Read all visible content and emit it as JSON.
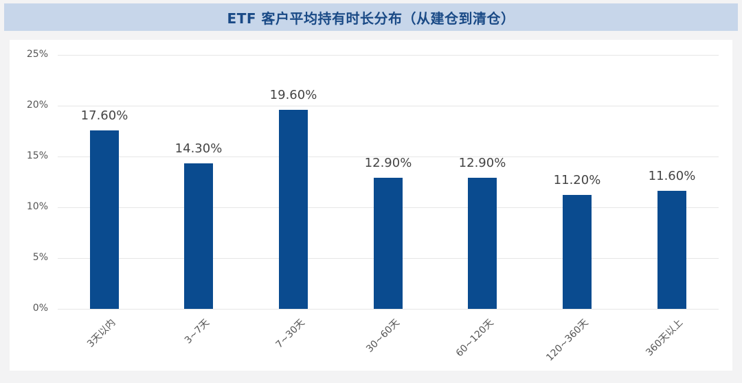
{
  "chart_data": {
    "type": "bar",
    "title": "ETF 客户平均持有时长分布（从建仓到清仓）",
    "categories": [
      "3天以内",
      "3~7天",
      "7~30天",
      "30~60天",
      "60~120天",
      "120~360天",
      "360天以上"
    ],
    "values": [
      17.6,
      14.3,
      19.6,
      12.9,
      12.9,
      11.2,
      11.6
    ],
    "data_labels": [
      "17.60%",
      "14.30%",
      "19.60%",
      "12.90%",
      "12.90%",
      "11.20%",
      "11.60%"
    ],
    "xlabel": "",
    "ylabel": "",
    "ylim": [
      0,
      25
    ],
    "yticks": [
      "0%",
      "5%",
      "10%",
      "15%",
      "20%",
      "25%"
    ],
    "grid": true,
    "legend": "none",
    "bar_color": "#0a4b8f"
  },
  "header": {
    "title": "ETF 客户平均持有时长分布（从建仓到清仓）",
    "background": "#c7d6ea",
    "title_color": "#1a4a86"
  }
}
